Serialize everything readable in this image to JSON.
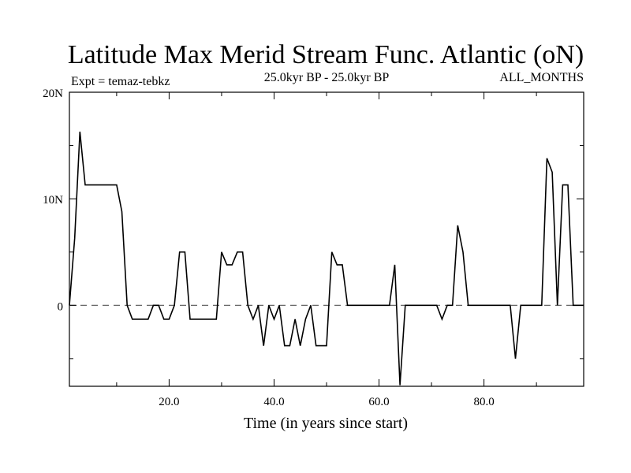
{
  "chart_data": {
    "type": "line",
    "title": "Latitude Max Merid Stream Func. Atlantic (oN)",
    "subtitle_left": "Expt = temaz-tebkz",
    "subtitle_center": "25.0kyr BP - 25.0kyr BP",
    "subtitle_right": "ALL_MONTHS",
    "xlabel": "Time (in years since start)",
    "ylabel": "",
    "xlim": [
      1,
      99
    ],
    "ylim": [
      -7.6,
      20
    ],
    "x_ticks": [
      {
        "value": 20,
        "label": "20.0"
      },
      {
        "value": 40,
        "label": "40.0"
      },
      {
        "value": 60,
        "label": "60.0"
      },
      {
        "value": 80,
        "label": "80.0"
      }
    ],
    "x_minor_ticks": [
      10,
      30,
      50,
      70,
      90
    ],
    "y_ticks": [
      {
        "value": 0,
        "label": "0"
      },
      {
        "value": 10,
        "label": "10N"
      },
      {
        "value": 20,
        "label": "20N"
      }
    ],
    "y_minor_ticks": [
      -5,
      5,
      15
    ],
    "reference_line": {
      "y": 0,
      "style": "dashed"
    },
    "colors": {
      "line": "#000000",
      "reference": "#555555",
      "background": "#ffffff"
    },
    "series": [
      {
        "x": [
          1,
          2,
          3,
          4,
          5,
          6,
          7,
          8,
          9,
          10,
          11,
          12,
          13,
          14,
          15,
          16,
          17,
          18,
          19,
          20,
          21,
          22,
          23,
          24,
          25,
          26,
          27,
          28,
          29,
          30,
          31,
          32,
          33,
          34,
          35,
          36,
          37,
          38,
          39,
          40,
          41,
          42,
          43,
          44,
          45,
          46,
          47,
          48,
          49,
          50,
          51,
          52,
          53,
          54,
          55,
          56,
          57,
          58,
          59,
          60,
          61,
          62,
          63,
          64,
          65,
          66,
          67,
          68,
          69,
          70,
          71,
          72,
          73,
          74,
          75,
          76,
          77,
          78,
          79,
          80,
          81,
          82,
          83,
          84,
          85,
          86,
          87,
          88,
          89,
          90,
          91,
          92,
          93,
          94,
          95,
          96,
          97,
          98,
          99
        ],
        "values": [
          0,
          6.3,
          16.3,
          11.3,
          11.3,
          11.3,
          11.3,
          11.3,
          11.3,
          11.3,
          8.8,
          0,
          -1.3,
          -1.3,
          -1.3,
          -1.3,
          0,
          0,
          -1.3,
          -1.3,
          0,
          5.0,
          5.0,
          -1.3,
          -1.3,
          -1.3,
          -1.3,
          -1.3,
          -1.3,
          5.0,
          3.8,
          3.8,
          5.0,
          5.0,
          0,
          -1.3,
          0,
          -3.8,
          0,
          -1.3,
          0,
          -3.8,
          -3.8,
          -1.3,
          -3.8,
          -1.3,
          0,
          -3.8,
          -3.8,
          -3.8,
          5.0,
          3.8,
          3.8,
          0,
          0,
          0,
          0,
          0,
          0,
          0,
          0,
          0,
          3.8,
          -7.5,
          0,
          0,
          0,
          0,
          0,
          0,
          0,
          -1.3,
          0,
          0,
          7.5,
          5.0,
          0,
          0,
          0,
          0,
          0,
          0,
          0,
          0,
          0,
          -5.0,
          0,
          0,
          0,
          0,
          0,
          13.8,
          12.5,
          0,
          11.3,
          11.3,
          0,
          0,
          0
        ]
      }
    ]
  }
}
